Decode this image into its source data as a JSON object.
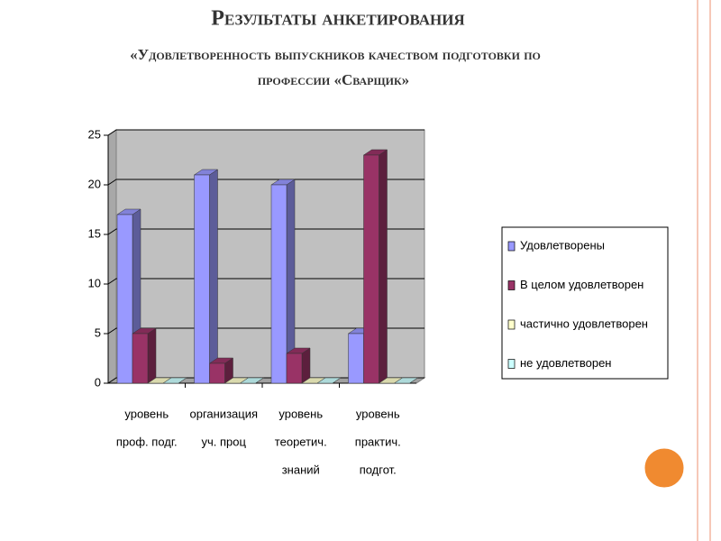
{
  "chart_data": {
    "type": "bar3d",
    "title": "Результаты анкетирования",
    "subtitle": [
      "«Удовлетворенность выпускников качеством подготовки по",
      "профессии «Сварщик»"
    ],
    "categories": [
      [
        "уровень",
        "проф. подг."
      ],
      [
        "организация",
        "уч. проц"
      ],
      [
        "уровень",
        "теоретич.",
        "знаний"
      ],
      [
        "уровень",
        "практич.",
        "подгот."
      ]
    ],
    "series": [
      {
        "name": "Удовлетворены",
        "color": "#9999ff",
        "values": [
          17,
          21,
          20,
          5
        ]
      },
      {
        "name": "В целом удовлетворен",
        "color": "#993366",
        "values": [
          5,
          2,
          3,
          23
        ]
      },
      {
        "name": "частично удовлетворен",
        "color": "#ffffcc",
        "values": [
          0,
          0,
          0,
          0
        ]
      },
      {
        "name": "не удовлетворен",
        "color": "#ccffff",
        "values": [
          0,
          0,
          0,
          0
        ]
      }
    ],
    "ylim": [
      0,
      25
    ],
    "yticks": [
      0,
      5,
      10,
      15,
      20,
      25
    ],
    "grid": true,
    "legend": "right"
  }
}
